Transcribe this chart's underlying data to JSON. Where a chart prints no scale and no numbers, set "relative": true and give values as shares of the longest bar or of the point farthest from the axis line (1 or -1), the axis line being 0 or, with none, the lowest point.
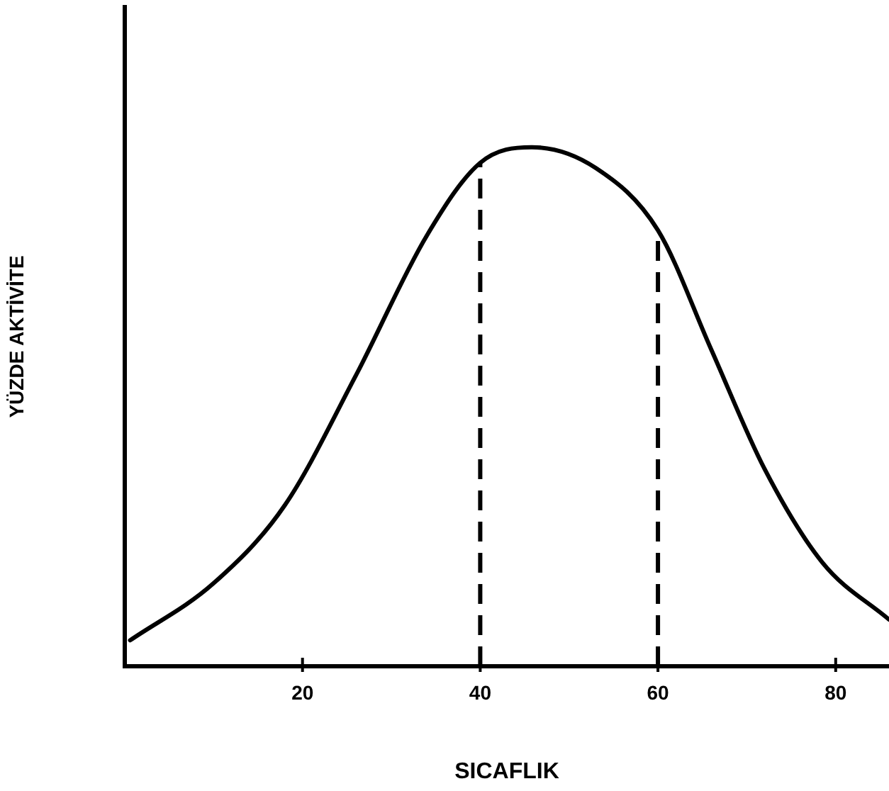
{
  "chart_data": {
    "type": "line",
    "xlabel": "SICAFLIK",
    "ylabel": "YÜZDE AKTİVİTE",
    "relative": true,
    "xlim": [
      0,
      86
    ],
    "xticks": [
      20,
      40,
      60,
      80
    ],
    "grid": false,
    "legend": false,
    "marker": "none",
    "x": [
      0.6,
      10,
      18,
      26,
      34,
      40,
      45.8,
      53,
      60,
      66,
      72,
      78.5,
      86
    ],
    "series": [
      {
        "color": "#000000",
        "values": [
          0.05,
          0.16,
          0.31,
          0.56,
          0.83,
          0.97,
          1,
          0.96,
          0.84,
          0.61,
          0.38,
          0.2,
          0.09
        ]
      }
    ],
    "ref_lines": [
      {
        "axis": "x",
        "value": 40,
        "color": "#000000",
        "line_style": "dashed"
      },
      {
        "axis": "x",
        "value": 60,
        "color": "#000000",
        "line_style": "dashed"
      }
    ]
  }
}
